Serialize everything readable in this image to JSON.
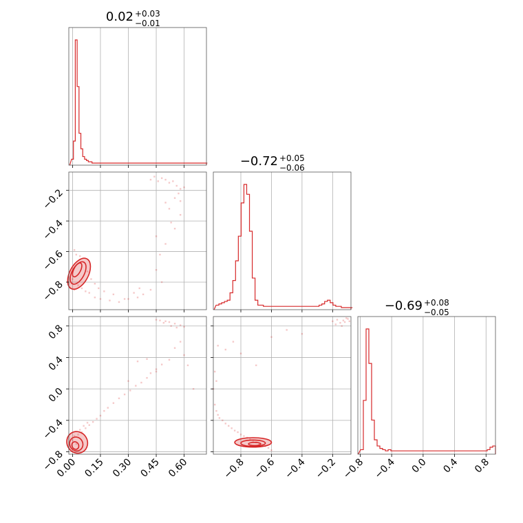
{
  "chart_data": {
    "type": "corner",
    "color": "#d62728",
    "grid": true,
    "parameters": [
      {
        "range": [
          -0.02,
          0.72
        ],
        "ticks": [
          "0.00",
          "0.15",
          "0.30",
          "0.45",
          "0.60"
        ],
        "tick_values": [
          0.0,
          0.15,
          0.3,
          0.45,
          0.6
        ]
      },
      {
        "range": [
          -0.98,
          -0.08
        ],
        "ticks": [
          "−0.8",
          "−0.6",
          "−0.4",
          "−0.2"
        ],
        "tick_values": [
          -0.8,
          -0.6,
          -0.4,
          -0.2
        ]
      },
      {
        "range": [
          -0.83,
          0.92
        ],
        "ticks": [
          "−0.8",
          "−0.4",
          "0.0",
          "0.4",
          "0.8"
        ],
        "tick_values": [
          -0.8,
          -0.4,
          0.0,
          0.4,
          0.8
        ]
      }
    ],
    "titles": [
      {
        "main": "0.02",
        "upper": "+0.03",
        "lower": "−0.01"
      },
      {
        "main": "−0.72",
        "upper": "+0.05",
        "lower": "−0.06"
      },
      {
        "main": "−0.69",
        "upper": "+0.08",
        "lower": "−0.05"
      }
    ],
    "histograms": [
      {
        "bin_width": 0.01,
        "counts": [
          3,
          17,
          95,
          59,
          23,
          11,
          5,
          3,
          2,
          1,
          1,
          0,
          0,
          0,
          0,
          0,
          0,
          0,
          0,
          0,
          0,
          0,
          0,
          0,
          0,
          0,
          0,
          0,
          0,
          0,
          0,
          0,
          0,
          0,
          0,
          0,
          0,
          0,
          0,
          0,
          0,
          0,
          0,
          0,
          0,
          0,
          0,
          0,
          0,
          0,
          0,
          0,
          0,
          0,
          0,
          0,
          0,
          0,
          0,
          0,
          0,
          0,
          0,
          0,
          0,
          0,
          0,
          0,
          0,
          0,
          0,
          0,
          0,
          0
        ]
      },
      {
        "bin_width": 0.0182,
        "counts": [
          2,
          3,
          4,
          5,
          6,
          12,
          22,
          38,
          58,
          85,
          100,
          92,
          62,
          24,
          6,
          2,
          2,
          1,
          1,
          1,
          1,
          1,
          1,
          1,
          1,
          1,
          1,
          1,
          1,
          1,
          1,
          1,
          1,
          1,
          1,
          1,
          1,
          2,
          3,
          5,
          6,
          4,
          2,
          1,
          1,
          0,
          0,
          0,
          0,
          0
        ]
      },
      {
        "bin_width": 0.035,
        "counts": [
          2,
          42,
          100,
          72,
          26,
          10,
          5,
          3,
          2,
          1,
          2,
          1,
          1,
          1,
          1,
          1,
          1,
          1,
          1,
          1,
          1,
          1,
          1,
          1,
          1,
          1,
          1,
          1,
          1,
          1,
          1,
          1,
          1,
          1,
          1,
          1,
          1,
          1,
          1,
          1,
          1,
          1,
          1,
          1,
          1,
          1,
          2,
          4,
          5,
          3
        ]
      }
    ],
    "scatter": [
      {
        "x_param": 0,
        "y_param": 1,
        "points": [
          [
            0.42,
            -0.13
          ],
          [
            0.44,
            -0.11
          ],
          [
            0.46,
            -0.14
          ],
          [
            0.48,
            -0.12
          ],
          [
            0.5,
            -0.13
          ],
          [
            0.52,
            -0.15
          ],
          [
            0.54,
            -0.14
          ],
          [
            0.56,
            -0.17
          ],
          [
            0.58,
            -0.19
          ],
          [
            0.6,
            -0.18
          ],
          [
            0.57,
            -0.22
          ],
          [
            0.55,
            -0.25
          ],
          [
            0.58,
            -0.27
          ],
          [
            0.5,
            -0.28
          ],
          [
            0.52,
            -0.32
          ],
          [
            0.53,
            -0.41
          ],
          [
            0.55,
            -0.45
          ],
          [
            0.58,
            -0.36
          ],
          [
            0.45,
            -0.5
          ],
          [
            0.47,
            -0.62
          ],
          [
            0.5,
            -0.55
          ],
          [
            0.45,
            -0.72
          ],
          [
            0.48,
            -0.8
          ],
          [
            0.42,
            -0.85
          ],
          [
            0.38,
            -0.88
          ],
          [
            0.35,
            -0.9
          ],
          [
            0.3,
            -0.91
          ],
          [
            0.25,
            -0.93
          ],
          [
            0.2,
            -0.92
          ],
          [
            0.15,
            -0.91
          ],
          [
            0.12,
            -0.9
          ],
          [
            0.09,
            -0.87
          ],
          [
            0.07,
            -0.86
          ],
          [
            0.05,
            -0.84
          ],
          [
            0.03,
            -0.82
          ],
          [
            0.01,
            -0.85
          ],
          [
            0.0,
            -0.78
          ],
          [
            0.02,
            -0.62
          ],
          [
            0.01,
            -0.59
          ],
          [
            0.04,
            -0.63
          ],
          [
            0.06,
            -0.67
          ],
          [
            0.08,
            -0.73
          ],
          [
            0.1,
            -0.78
          ],
          [
            0.12,
            -0.81
          ],
          [
            0.14,
            -0.84
          ],
          [
            0.17,
            -0.86
          ],
          [
            0.22,
            -0.88
          ],
          [
            0.28,
            -0.91
          ],
          [
            0.33,
            -0.87
          ],
          [
            0.36,
            -0.84
          ]
        ]
      },
      {
        "x_param": 0,
        "y_param": 2,
        "points": [
          [
            0.45,
            0.88
          ],
          [
            0.47,
            0.87
          ],
          [
            0.5,
            0.86
          ],
          [
            0.52,
            0.85
          ],
          [
            0.55,
            0.83
          ],
          [
            0.58,
            0.81
          ],
          [
            0.6,
            0.79
          ],
          [
            0.56,
            0.78
          ],
          [
            0.53,
            0.8
          ],
          [
            0.49,
            0.84
          ],
          [
            0.58,
            0.6
          ],
          [
            0.55,
            0.52
          ],
          [
            0.6,
            0.43
          ],
          [
            0.52,
            0.37
          ],
          [
            0.48,
            0.31
          ],
          [
            0.45,
            0.25
          ],
          [
            0.42,
            0.2
          ],
          [
            0.4,
            0.14
          ],
          [
            0.37,
            0.08
          ],
          [
            0.34,
            0.04
          ],
          [
            0.31,
            -0.02
          ],
          [
            0.28,
            -0.07
          ],
          [
            0.25,
            -0.12
          ],
          [
            0.22,
            -0.18
          ],
          [
            0.19,
            -0.24
          ],
          [
            0.17,
            -0.28
          ],
          [
            0.15,
            -0.34
          ],
          [
            0.13,
            -0.38
          ],
          [
            0.11,
            -0.42
          ],
          [
            0.09,
            -0.46
          ],
          [
            0.07,
            -0.5
          ],
          [
            0.05,
            -0.55
          ],
          [
            0.03,
            -0.58
          ],
          [
            0.01,
            -0.6
          ],
          [
            0.0,
            -0.65
          ],
          [
            0.02,
            -0.7
          ],
          [
            0.04,
            -0.52
          ],
          [
            0.06,
            -0.47
          ],
          [
            0.08,
            -0.43
          ],
          [
            0.65,
            0.0
          ],
          [
            0.62,
            0.3
          ],
          [
            0.35,
            0.35
          ],
          [
            0.4,
            0.38
          ],
          [
            0.45,
            0.22
          ],
          [
            0.3,
            0.1
          ]
        ]
      },
      {
        "x_param": 1,
        "y_param": 2,
        "points": [
          [
            -0.97,
            -0.2
          ],
          [
            -0.96,
            -0.28
          ],
          [
            -0.95,
            -0.33
          ],
          [
            -0.94,
            -0.37
          ],
          [
            -0.92,
            -0.4
          ],
          [
            -0.9,
            -0.44
          ],
          [
            -0.88,
            -0.47
          ],
          [
            -0.86,
            -0.5
          ],
          [
            -0.84,
            -0.53
          ],
          [
            -0.82,
            -0.55
          ],
          [
            -0.8,
            -0.58
          ],
          [
            -0.78,
            -0.6
          ],
          [
            -0.76,
            -0.62
          ],
          [
            -0.74,
            -0.64
          ],
          [
            -0.72,
            -0.66
          ],
          [
            -0.7,
            -0.68
          ],
          [
            -0.68,
            -0.7
          ],
          [
            -0.66,
            -0.71
          ],
          [
            -0.64,
            -0.73
          ],
          [
            -0.62,
            -0.75
          ],
          [
            -0.6,
            -0.78
          ],
          [
            -0.95,
            0.55
          ],
          [
            -0.97,
            0.22
          ],
          [
            -0.9,
            0.5
          ],
          [
            -0.85,
            0.6
          ],
          [
            -0.8,
            0.45
          ],
          [
            -0.6,
            0.66
          ],
          [
            -0.5,
            0.75
          ],
          [
            -0.4,
            0.7
          ],
          [
            -0.2,
            0.86
          ],
          [
            -0.17,
            0.88
          ],
          [
            -0.15,
            0.84
          ],
          [
            -0.13,
            0.87
          ],
          [
            -0.12,
            0.85
          ],
          [
            -0.1,
            0.89
          ],
          [
            -0.14,
            0.8
          ],
          [
            -0.18,
            0.82
          ],
          [
            -0.11,
            0.9
          ],
          [
            -0.09,
            0.86
          ],
          [
            -0.7,
            0.3
          ],
          [
            -0.98,
            0.0
          ],
          [
            -0.96,
            0.1
          ]
        ]
      }
    ],
    "contours": [
      {
        "x_param": 0,
        "y_param": 1,
        "levels": [
          {
            "center": [
              0.035,
              -0.745
            ],
            "rx": 0.05,
            "ry": 0.11,
            "angle": 28,
            "filled": true
          },
          {
            "center": [
              0.03,
              -0.74
            ],
            "rx": 0.033,
            "ry": 0.08,
            "angle": 28,
            "filled": false
          },
          {
            "center": [
              0.025,
              -0.72
            ],
            "rx": 0.018,
            "ry": 0.05,
            "angle": 28,
            "filled": false
          }
        ]
      },
      {
        "x_param": 0,
        "y_param": 2,
        "levels": [
          {
            "center": [
              0.025,
              -0.68
            ],
            "rx": 0.055,
            "ry": 0.14,
            "angle": -30,
            "filled": true
          },
          {
            "center": [
              0.02,
              -0.7
            ],
            "rx": 0.035,
            "ry": 0.09,
            "angle": -30,
            "filled": false
          },
          {
            "center": [
              0.015,
              -0.72
            ],
            "rx": 0.018,
            "ry": 0.05,
            "angle": -30,
            "filled": false
          }
        ]
      },
      {
        "x_param": 1,
        "y_param": 2,
        "levels": [
          {
            "center": [
              -0.72,
              -0.68
            ],
            "rx": 0.12,
            "ry": 0.06,
            "angle": 0,
            "filled": true
          },
          {
            "center": [
              -0.72,
              -0.69
            ],
            "rx": 0.08,
            "ry": 0.04,
            "angle": 0,
            "filled": false
          },
          {
            "center": [
              -0.71,
              -0.7
            ],
            "rx": 0.04,
            "ry": 0.02,
            "angle": 0,
            "filled": false
          }
        ]
      }
    ]
  }
}
